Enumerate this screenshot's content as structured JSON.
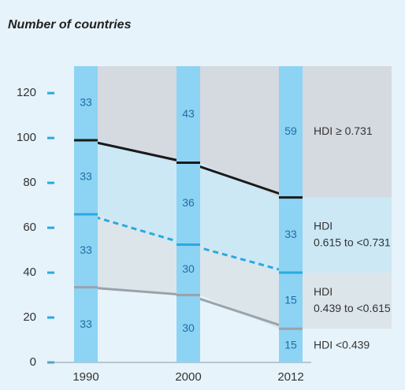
{
  "chart_data": {
    "type": "line",
    "title": "Number of countries",
    "categories": [
      "1990",
      "2000",
      "2012"
    ],
    "ylim": [
      0,
      132
    ],
    "yticks": [
      0,
      20,
      40,
      60,
      80,
      100,
      120
    ],
    "bar_color": "#8dd3f3",
    "series": [
      {
        "color": "#1a1a1a",
        "values": [
          99,
          89,
          73.5
        ]
      },
      {
        "color": "#2aa9e0",
        "dashed": true,
        "values": [
          66,
          52.5,
          40
        ]
      },
      {
        "color": "#9aa3aa",
        "values": [
          33.5,
          30,
          15
        ]
      }
    ],
    "region_colors": [
      "#e6f3fa",
      "#dce5ea",
      "#cce8f5",
      "#d5d9e0"
    ],
    "counts": [
      [
        33,
        33,
        33,
        33
      ],
      [
        30,
        30,
        36,
        43
      ],
      [
        15,
        15,
        33,
        59
      ]
    ],
    "region_labels": [
      [
        "HDI <0.439"
      ],
      [
        "HDI",
        "0.439 to <0.615"
      ],
      [
        "HDI",
        "0.615 to <0.731"
      ],
      [
        "HDI ≥ 0.731"
      ]
    ]
  }
}
